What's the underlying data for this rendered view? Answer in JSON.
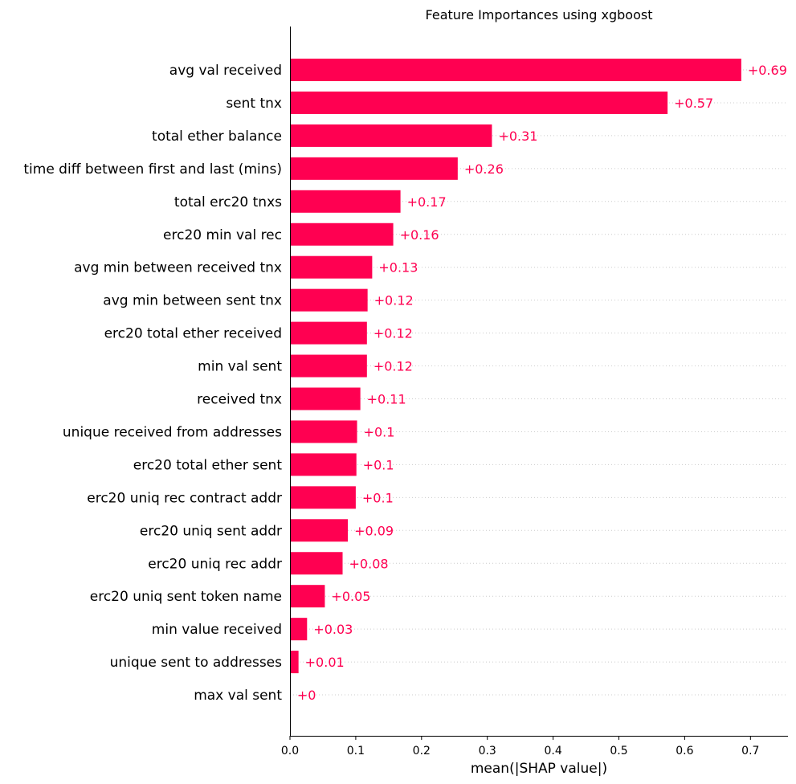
{
  "chart_data": {
    "type": "bar",
    "orientation": "horizontal",
    "title": "Feature Importances using xgboost",
    "xlabel": "mean(|SHAP value|)",
    "ylabel": "",
    "xlim": [
      0,
      0.757
    ],
    "xticks": [
      0.0,
      0.1,
      0.2,
      0.3,
      0.4,
      0.5,
      0.6,
      0.7
    ],
    "xtick_labels": [
      "0.0",
      "0.1",
      "0.2",
      "0.3",
      "0.4",
      "0.5",
      "0.6",
      "0.7"
    ],
    "grid": "horizontal dotted per row",
    "bar_color": "#ff0051",
    "categories": [
      "avg val received",
      "sent tnx",
      "total ether balance",
      "time diff between first and last (mins)",
      "total erc20 tnxs",
      "erc20 min val rec",
      "avg min between received tnx",
      "avg min between sent tnx",
      "erc20 total ether received",
      "min val sent",
      "received tnx",
      "unique received from addresses",
      "erc20 total ether sent",
      "erc20 uniq rec contract addr",
      "erc20 uniq sent addr",
      "erc20 uniq rec addr",
      "erc20 uniq sent token name",
      "min value received",
      "unique sent to addresses",
      "max val sent"
    ],
    "values": [
      0.686,
      0.574,
      0.307,
      0.255,
      0.168,
      0.157,
      0.125,
      0.118,
      0.117,
      0.117,
      0.107,
      0.102,
      0.101,
      0.1,
      0.088,
      0.08,
      0.053,
      0.026,
      0.013,
      0.001
    ],
    "value_labels": [
      "+0.69",
      "+0.57",
      "+0.31",
      "+0.26",
      "+0.17",
      "+0.16",
      "+0.13",
      "+0.12",
      "+0.12",
      "+0.12",
      "+0.11",
      "+0.1",
      "+0.1",
      "+0.1",
      "+0.09",
      "+0.08",
      "+0.05",
      "+0.03",
      "+0.01",
      "+0"
    ]
  }
}
